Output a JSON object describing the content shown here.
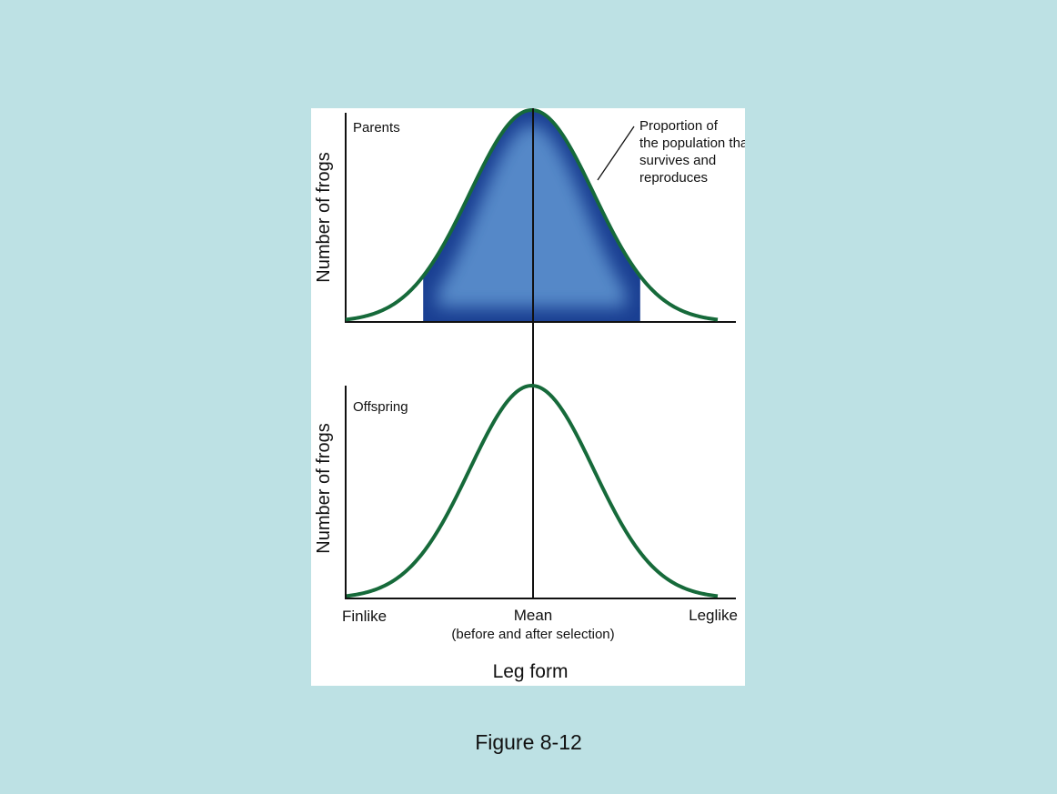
{
  "chart_data": {
    "type": "area",
    "xlabel": "Leg form",
    "x_tick_labels": {
      "left": "Finlike",
      "center": "Mean",
      "center_sub": "(before and after selection)",
      "right": "Leglike"
    },
    "panels": [
      {
        "label": "Parents",
        "ylabel": "Number of frogs",
        "curve": "normal",
        "mean": 0,
        "sd": 1,
        "xlim": [
          -3,
          3
        ],
        "selected_region": [
          -1.75,
          1.75
        ],
        "annotation": "Proportion of the population that survives and reproduces"
      },
      {
        "label": "Offspring",
        "ylabel": "Number of frogs",
        "curve": "normal",
        "mean": 0,
        "sd": 1,
        "xlim": [
          -3,
          3
        ]
      }
    ],
    "colors": {
      "curve": "#166a3a",
      "selected_fill_core": "#5588c8",
      "selected_fill_edge": "#1a3f92",
      "background": "#bde1e4",
      "panel": "#ffffff"
    }
  },
  "caption": "Figure 8-12"
}
